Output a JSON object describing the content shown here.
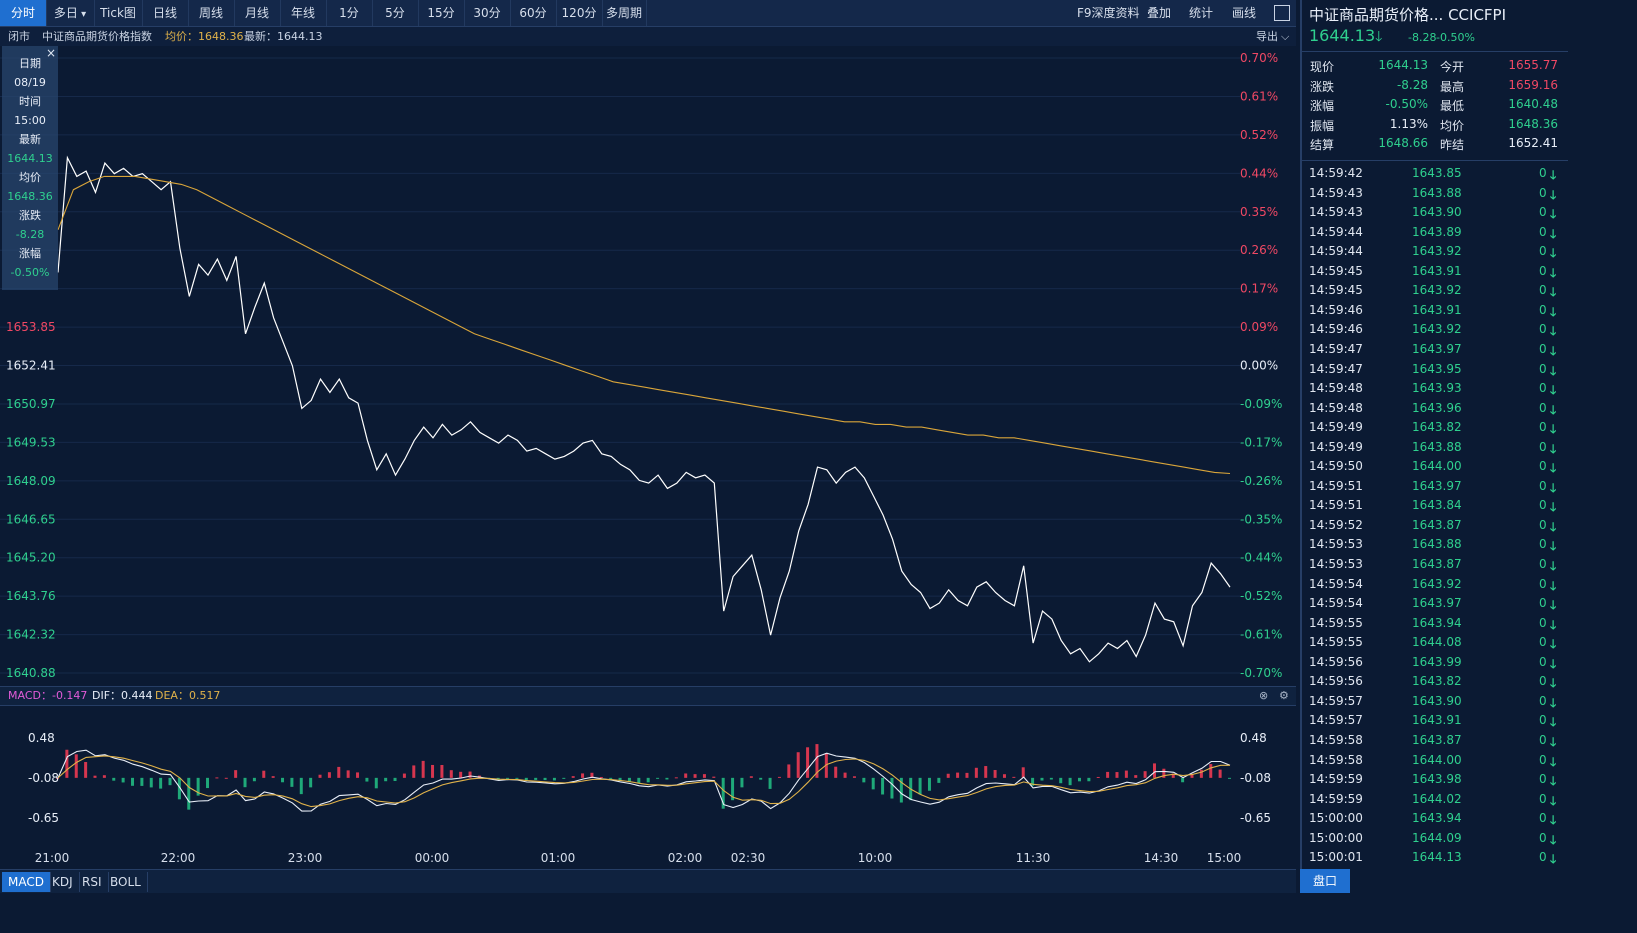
{
  "toolbar": {
    "tabs": [
      "分时",
      "多日",
      "Tick图",
      "日线",
      "周线",
      "月线",
      "年线",
      "1分",
      "5分",
      "15分",
      "30分",
      "60分",
      "120分",
      "多周期"
    ],
    "active_tab": "分时",
    "right_items": [
      "F9深度资料",
      "叠加",
      "统计",
      "画线"
    ]
  },
  "info_bar": {
    "status": "闭市",
    "name": "中证商品期货价格指数",
    "avg_label": "均价：1648.36",
    "last_label": "最新：1644.13",
    "export": "导出"
  },
  "tooltip": {
    "items": [
      "日期",
      "08/19",
      "时间",
      "15:00",
      "最新",
      "1644.13",
      "均价",
      "1648.36",
      "涨跌",
      "-8.28",
      "涨幅",
      "-0.50%"
    ]
  },
  "chart_data": {
    "type": "line",
    "y_left_ticks": [
      "1653.85",
      "1652.41",
      "1650.97",
      "1649.53",
      "1648.09",
      "1646.65",
      "1645.20",
      "1643.76",
      "1642.32",
      "1640.88"
    ],
    "y_right_ticks": [
      "0.70%",
      "0.61%",
      "0.52%",
      "0.44%",
      "0.35%",
      "0.26%",
      "0.17%",
      "0.09%",
      "0.00%",
      "-0.09%",
      "-0.17%",
      "-0.26%",
      "-0.35%",
      "-0.44%",
      "-0.52%",
      "-0.61%",
      "-0.70%"
    ],
    "ylim": [
      1640.88,
      1663.94
    ],
    "prev_settle": 1652.41,
    "x_ticks": [
      "21:00",
      "22:00",
      "23:00",
      "00:00",
      "01:00",
      "02:00",
      "02:30",
      "10:00",
      "11:30",
      "14:30",
      "15:00"
    ],
    "series": [
      {
        "color": "#ffffff",
        "values": [
          1655.9,
          1660.2,
          1659.5,
          1659.7,
          1658.9,
          1660.0,
          1659.6,
          1659.8,
          1659.5,
          1659.6,
          1659.3,
          1659.0,
          1659.3,
          1656.8,
          1655.0,
          1656.2,
          1655.8,
          1656.4,
          1655.6,
          1656.5,
          1653.6,
          1654.6,
          1655.5,
          1654.2,
          1653.3,
          1652.4,
          1650.8,
          1651.1,
          1651.9,
          1651.4,
          1651.9,
          1651.2,
          1651.0,
          1649.6,
          1648.5,
          1649.1,
          1648.3,
          1648.9,
          1649.6,
          1650.1,
          1649.7,
          1650.2,
          1649.8,
          1650.0,
          1650.3,
          1649.9,
          1649.7,
          1649.5,
          1649.8,
          1649.6,
          1649.2,
          1649.3,
          1649.1,
          1648.9,
          1649.0,
          1649.2,
          1649.5,
          1649.6,
          1649.1,
          1649.0,
          1648.7,
          1648.5,
          1648.1,
          1648.0,
          1648.3,
          1647.8,
          1648.0,
          1648.4,
          1648.2,
          1648.3,
          1648.0,
          1643.2,
          1644.5,
          1644.9,
          1645.3,
          1644.0,
          1642.3,
          1643.7,
          1644.7,
          1646.2,
          1647.2,
          1648.6,
          1648.5,
          1648.0,
          1648.4,
          1648.6,
          1648.2,
          1647.5,
          1646.8,
          1645.9,
          1644.7,
          1644.2,
          1643.9,
          1643.3,
          1643.5,
          1644.0,
          1643.6,
          1643.4,
          1644.1,
          1644.3,
          1643.9,
          1643.6,
          1643.4,
          1644.9,
          1642.0,
          1643.2,
          1642.9,
          1642.1,
          1641.6,
          1641.8,
          1641.3,
          1641.6,
          1642.0,
          1641.8,
          1642.1,
          1641.5,
          1642.3,
          1643.5,
          1642.9,
          1642.8,
          1641.9,
          1643.4,
          1643.9,
          1645.0,
          1644.6,
          1644.1
        ]
      },
      {
        "color": "#d9a53a",
        "values": [
          1657.5,
          1659.0,
          1659.3,
          1659.5,
          1659.5,
          1659.5,
          1659.4,
          1659.3,
          1659.2,
          1659.0,
          1658.7,
          1658.4,
          1658.1,
          1657.8,
          1657.5,
          1657.2,
          1656.9,
          1656.6,
          1656.3,
          1656.0,
          1655.7,
          1655.4,
          1655.1,
          1654.8,
          1654.5,
          1654.2,
          1653.9,
          1653.6,
          1653.4,
          1653.2,
          1653.0,
          1652.8,
          1652.6,
          1652.4,
          1652.2,
          1652.0,
          1651.8,
          1651.7,
          1651.6,
          1651.5,
          1651.4,
          1651.3,
          1651.2,
          1651.1,
          1651.0,
          1650.9,
          1650.8,
          1650.7,
          1650.6,
          1650.5,
          1650.4,
          1650.3,
          1650.3,
          1650.2,
          1650.2,
          1650.1,
          1650.1,
          1650.0,
          1649.9,
          1649.8,
          1649.8,
          1649.7,
          1649.7,
          1649.6,
          1649.5,
          1649.4,
          1649.3,
          1649.2,
          1649.1,
          1649.0,
          1648.9,
          1648.8,
          1648.7,
          1648.6,
          1648.5,
          1648.4,
          1648.36
        ]
      }
    ],
    "macd": {
      "label": "MACD：-0.147",
      "dif": "DIF：0.444",
      "dea": "DEA：0.517",
      "y_ticks": [
        "0.48",
        "-0.08",
        "-0.65"
      ],
      "ylim": [
        -1.1,
        0.95
      ]
    }
  },
  "indicator_tabs": [
    "MACD",
    "KDJ",
    "RSI",
    "BOLL"
  ],
  "right_panel": {
    "title": "中证商品期货价格...  CCICFPI",
    "price": "1644.13",
    "change": "-8.28",
    "pct": "-0.50%",
    "quotes": [
      {
        "l1": "现价",
        "v1": "1644.13",
        "c1": "green",
        "l2": "今开",
        "v2": "1655.77",
        "c2": "red"
      },
      {
        "l1": "涨跌",
        "v1": "-8.28",
        "c1": "green",
        "l2": "最高",
        "v2": "1659.16",
        "c2": "red"
      },
      {
        "l1": "涨幅",
        "v1": "-0.50%",
        "c1": "green",
        "l2": "最低",
        "v2": "1640.48",
        "c2": "green"
      },
      {
        "l1": "振幅",
        "v1": "1.13%",
        "c1": "white",
        "l2": "均价",
        "v2": "1648.36",
        "c2": "green"
      },
      {
        "l1": "结算",
        "v1": "1648.66",
        "c1": "green",
        "l2": "昨结",
        "v2": "1652.41",
        "c2": "white"
      }
    ],
    "ticks": [
      [
        "14:59:42",
        "1643.85"
      ],
      [
        "14:59:43",
        "1643.88"
      ],
      [
        "14:59:43",
        "1643.90"
      ],
      [
        "14:59:44",
        "1643.89"
      ],
      [
        "14:59:44",
        "1643.92"
      ],
      [
        "14:59:45",
        "1643.91"
      ],
      [
        "14:59:45",
        "1643.92"
      ],
      [
        "14:59:46",
        "1643.91"
      ],
      [
        "14:59:46",
        "1643.92"
      ],
      [
        "14:59:47",
        "1643.97"
      ],
      [
        "14:59:47",
        "1643.95"
      ],
      [
        "14:59:48",
        "1643.93"
      ],
      [
        "14:59:48",
        "1643.96"
      ],
      [
        "14:59:49",
        "1643.82"
      ],
      [
        "14:59:49",
        "1643.88"
      ],
      [
        "14:59:50",
        "1644.00"
      ],
      [
        "14:59:51",
        "1643.97"
      ],
      [
        "14:59:51",
        "1643.84"
      ],
      [
        "14:59:52",
        "1643.87"
      ],
      [
        "14:59:53",
        "1643.88"
      ],
      [
        "14:59:53",
        "1643.87"
      ],
      [
        "14:59:54",
        "1643.92"
      ],
      [
        "14:59:54",
        "1643.97"
      ],
      [
        "14:59:55",
        "1643.94"
      ],
      [
        "14:59:55",
        "1644.08"
      ],
      [
        "14:59:56",
        "1643.99"
      ],
      [
        "14:59:56",
        "1643.82"
      ],
      [
        "14:59:57",
        "1643.90"
      ],
      [
        "14:59:57",
        "1643.91"
      ],
      [
        "14:59:58",
        "1643.87"
      ],
      [
        "14:59:58",
        "1644.00"
      ],
      [
        "14:59:59",
        "1643.98"
      ],
      [
        "14:59:59",
        "1644.02"
      ],
      [
        "15:00:00",
        "1643.94"
      ],
      [
        "15:00:00",
        "1644.09"
      ],
      [
        "15:00:01",
        "1644.13"
      ]
    ],
    "tick_vol": "0",
    "pankou": "盘口"
  },
  "colors": {
    "up": "#f04864",
    "down": "#2fd08f",
    "accent": "#1f6fd0",
    "avg": "#d9a53a",
    "bg": "#0b1a33"
  }
}
